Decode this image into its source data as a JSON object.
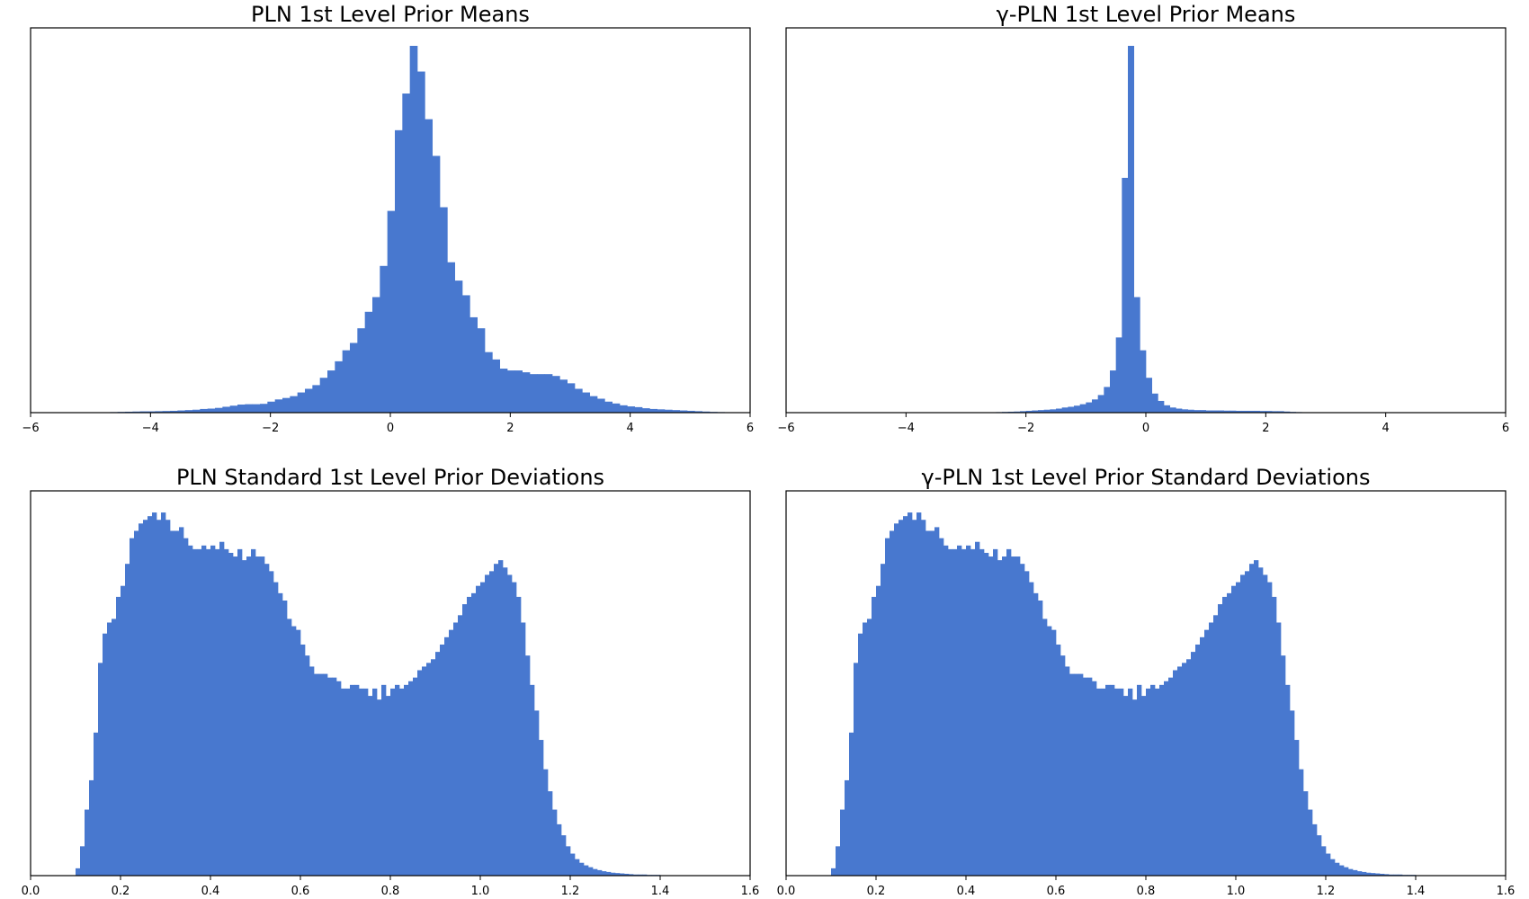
{
  "figure": {
    "background": "#ffffff",
    "bar_color": "#4878CF"
  },
  "chart_data": [
    {
      "type": "bar",
      "title": "PLN 1st Level Prior Means",
      "xlabel": "",
      "ylabel": "",
      "xlim": [
        -6,
        6
      ],
      "ylim": [
        0,
        100
      ],
      "xticks": [
        "−6",
        "−4",
        "−2",
        "0",
        "2",
        "4",
        "6"
      ],
      "xtick_values": [
        -6,
        -4,
        -2,
        0,
        2,
        4,
        6
      ],
      "yticks": [],
      "grid": false,
      "bin_start": -4.8,
      "bin_width": 0.125,
      "values": [
        0.1,
        0.15,
        0.2,
        0.25,
        0.3,
        0.35,
        0.35,
        0.4,
        0.45,
        0.5,
        0.6,
        0.7,
        0.8,
        1.0,
        1.1,
        1.3,
        1.6,
        1.9,
        2.2,
        2.3,
        2.3,
        2.4,
        3.0,
        3.6,
        4.0,
        4.5,
        5.5,
        6.5,
        7.5,
        9.5,
        11.5,
        14.0,
        17.0,
        19.0,
        23.0,
        27.5,
        31.5,
        40.0,
        55.0,
        77.0,
        87.0,
        100.0,
        93.0,
        80.0,
        70.0,
        56.0,
        41.0,
        36.0,
        32.0,
        26.0,
        23.0,
        16.5,
        14.5,
        12.0,
        11.5,
        11.5,
        11.0,
        10.5,
        10.5,
        10.5,
        10.0,
        9.0,
        8.0,
        6.5,
        5.5,
        4.5,
        3.8,
        3.0,
        2.5,
        2.0,
        1.7,
        1.5,
        1.2,
        1.0,
        0.9,
        0.8,
        0.7,
        0.6,
        0.5,
        0.4,
        0.3,
        0.2,
        0.15
      ]
    },
    {
      "type": "bar",
      "title": "γ-PLN 1st Level Prior Means",
      "xlabel": "",
      "ylabel": "",
      "xlim": [
        -6,
        6
      ],
      "ylim": [
        0,
        100
      ],
      "xticks": [
        "−6",
        "−4",
        "−2",
        "0",
        "2",
        "4",
        "6"
      ],
      "xtick_values": [
        -6,
        -4,
        -2,
        0,
        2,
        4,
        6
      ],
      "yticks": [],
      "grid": false,
      "bin_start": -3.2,
      "bin_width": 0.1,
      "values": [
        0.1,
        0,
        0,
        0,
        0.1,
        0,
        0,
        0.15,
        0.2,
        0.25,
        0.3,
        0.4,
        0.5,
        0.6,
        0.7,
        0.8,
        0.9,
        1.1,
        1.4,
        1.6,
        1.9,
        2.3,
        2.8,
        3.6,
        4.8,
        7.0,
        11.5,
        20.5,
        64.0,
        100.0,
        31.5,
        17.0,
        9.5,
        5.2,
        3.2,
        2.0,
        1.4,
        1.1,
        0.9,
        0.8,
        0.7,
        0.7,
        0.6,
        0.6,
        0.6,
        0.55,
        0.55,
        0.5,
        0.5,
        0.5,
        0.5,
        0.45,
        0.45,
        0.4,
        0.4,
        0.3,
        0.2,
        0.15,
        0.1,
        0.1,
        0.05,
        0.05,
        0.05,
        0.05,
        0.05
      ]
    },
    {
      "type": "bar",
      "title": "PLN Standard 1st Level Prior Deviations",
      "xlabel": "",
      "ylabel": "",
      "xlim": [
        0.0,
        1.6
      ],
      "ylim": [
        0,
        100
      ],
      "xticks": [
        "0.0",
        "0.2",
        "0.4",
        "0.6",
        "0.8",
        "1.0",
        "1.2",
        "1.4",
        "1.6"
      ],
      "xtick_values": [
        0.0,
        0.2,
        0.4,
        0.6,
        0.8,
        1.0,
        1.2,
        1.4,
        1.6
      ],
      "yticks": [],
      "grid": false,
      "bin_start": 0.1,
      "bin_width": 0.01,
      "values": [
        2,
        8,
        18,
        26,
        39,
        58,
        66,
        69,
        70,
        76,
        79,
        85,
        92,
        94,
        96,
        97,
        98,
        99,
        97,
        99,
        97,
        94,
        94,
        95,
        92,
        90,
        89,
        89,
        90,
        89,
        90,
        89,
        91,
        89,
        88,
        87,
        89,
        86,
        87,
        89,
        87,
        87,
        85,
        83,
        80,
        77,
        75,
        70,
        68,
        67,
        63,
        60,
        57,
        55,
        55,
        55,
        54,
        54,
        53,
        51,
        51,
        52,
        52,
        51,
        51,
        49,
        51,
        48,
        52,
        49,
        51,
        52,
        51,
        52,
        53,
        54,
        56,
        57,
        58,
        59,
        61,
        63,
        65,
        67,
        69,
        71,
        74,
        76,
        77,
        79,
        80,
        82,
        83,
        85,
        86,
        84,
        82,
        80,
        76,
        69,
        60,
        52,
        45,
        37,
        29,
        23,
        18,
        14,
        11,
        8,
        6,
        4.5,
        3.5,
        2.8,
        2.3,
        1.8,
        1.5,
        1.2,
        1.0,
        0.8,
        0.7,
        0.6,
        0.5,
        0.4,
        0.3,
        0.3,
        0.3,
        0.2,
        0.2,
        0.2,
        0.1,
        0.1,
        0.1
      ]
    },
    {
      "type": "bar",
      "title": "γ-PLN 1st Level Prior Standard Deviations",
      "xlabel": "",
      "ylabel": "",
      "xlim": [
        0.0,
        1.6
      ],
      "ylim": [
        0,
        100
      ],
      "xticks": [
        "0.0",
        "0.2",
        "0.4",
        "0.6",
        "0.8",
        "1.0",
        "1.2",
        "1.4",
        "1.6"
      ],
      "xtick_values": [
        0.0,
        0.2,
        0.4,
        0.6,
        0.8,
        1.0,
        1.2,
        1.4,
        1.6
      ],
      "yticks": [],
      "grid": false,
      "bin_start": 0.1,
      "bin_width": 0.01,
      "values": [
        2,
        8,
        18,
        26,
        39,
        58,
        66,
        69,
        70,
        76,
        79,
        85,
        92,
        94,
        96,
        97,
        98,
        99,
        97,
        99,
        97,
        94,
        94,
        95,
        92,
        90,
        89,
        89,
        90,
        89,
        90,
        89,
        91,
        89,
        88,
        87,
        89,
        86,
        87,
        89,
        87,
        87,
        85,
        83,
        80,
        77,
        75,
        70,
        68,
        67,
        63,
        60,
        57,
        55,
        55,
        55,
        54,
        54,
        53,
        51,
        51,
        52,
        52,
        51,
        51,
        49,
        51,
        48,
        52,
        49,
        51,
        52,
        51,
        52,
        53,
        54,
        56,
        57,
        58,
        59,
        61,
        63,
        65,
        67,
        69,
        71,
        74,
        76,
        77,
        79,
        80,
        82,
        83,
        85,
        86,
        84,
        82,
        80,
        76,
        69,
        60,
        52,
        45,
        37,
        29,
        23,
        18,
        14,
        11,
        8,
        6,
        4.5,
        3.5,
        2.8,
        2.3,
        1.8,
        1.5,
        1.2,
        1.0,
        0.8,
        0.7,
        0.6,
        0.5,
        0.4,
        0.3,
        0.3,
        0.3,
        0.2,
        0.2,
        0.2,
        0.1,
        0.1,
        0.1
      ]
    }
  ]
}
